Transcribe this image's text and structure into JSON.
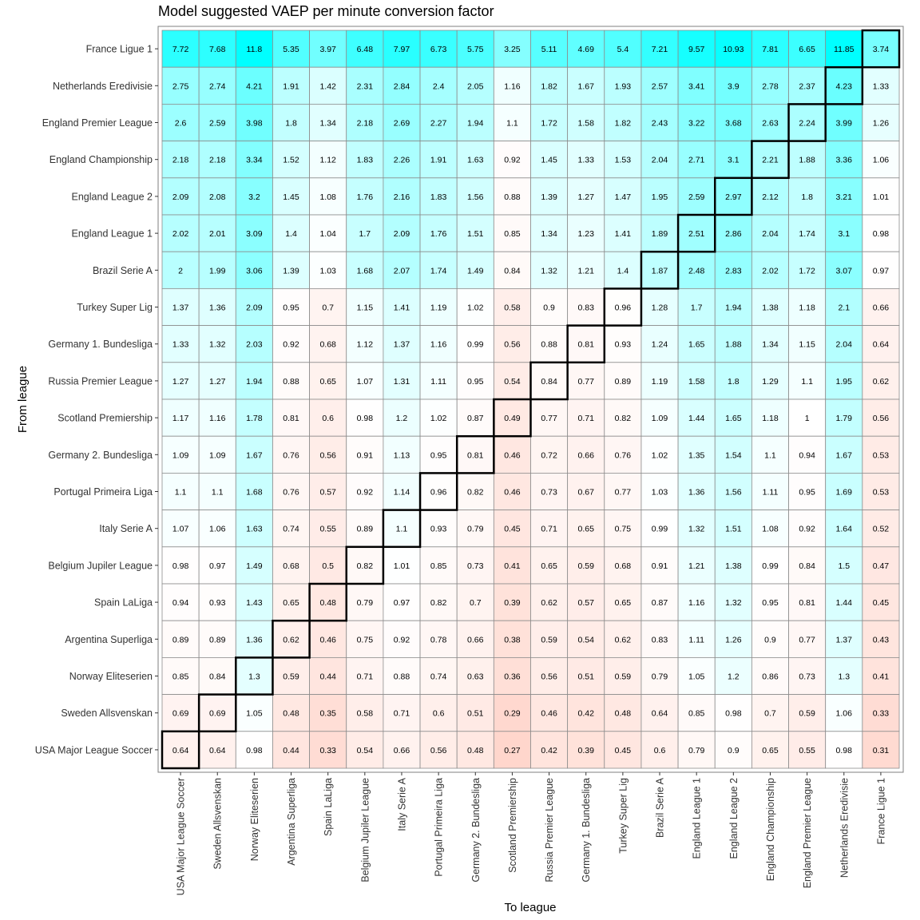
{
  "chart_data": {
    "type": "heatmap",
    "title": "Model suggested VAEP per minute conversion factor",
    "xlabel": "To league",
    "ylabel": "From league",
    "grid": true,
    "legend": "none",
    "colors": {
      "high": "#00ffff",
      "mid": "#ffffff",
      "low": "#ffd6cc",
      "midpoint": 1.0,
      "diagonal_outline": "#000000"
    },
    "x_categories": [
      "USA Major League Soccer",
      "Sweden Allsvenskan",
      "Norway Eliteserien",
      "Argentina Superliga",
      "Spain LaLiga",
      "Belgium Jupiler League",
      "Italy Serie A",
      "Portugal Primeira Liga",
      "Germany 2. Bundesliga",
      "Scotland Premiership",
      "Russia Premier League",
      "Germany 1. Bundesliga",
      "Turkey Super Lig",
      "Brazil Serie A",
      "England League 1",
      "England League 2",
      "England Championship",
      "England Premier League",
      "Netherlands Eredivisie",
      "France Ligue 1"
    ],
    "y_categories": [
      "France Ligue 1",
      "Netherlands Eredivisie",
      "England Premier League",
      "England Championship",
      "England League 2",
      "England League 1",
      "Brazil Serie A",
      "Turkey Super Lig",
      "Germany 1. Bundesliga",
      "Russia Premier League",
      "Scotland Premiership",
      "Germany 2. Bundesliga",
      "Portugal Primeira Liga",
      "Italy Serie A",
      "Belgium Jupiler League",
      "Spain LaLiga",
      "Argentina Superliga",
      "Norway Eliteserien",
      "Sweden Allsvenskan",
      "USA Major League Soccer"
    ],
    "values": [
      [
        7.72,
        7.68,
        11.8,
        5.35,
        3.97,
        6.48,
        7.97,
        6.73,
        5.75,
        3.25,
        5.11,
        4.69,
        5.4,
        7.21,
        9.57,
        10.93,
        7.81,
        6.65,
        11.85,
        3.74
      ],
      [
        2.75,
        2.74,
        4.21,
        1.91,
        1.42,
        2.31,
        2.84,
        2.4,
        2.05,
        1.16,
        1.82,
        1.67,
        1.93,
        2.57,
        3.41,
        3.9,
        2.78,
        2.37,
        4.23,
        1.33
      ],
      [
        2.6,
        2.59,
        3.98,
        1.8,
        1.34,
        2.18,
        2.69,
        2.27,
        1.94,
        1.1,
        1.72,
        1.58,
        1.82,
        2.43,
        3.22,
        3.68,
        2.63,
        2.24,
        3.99,
        1.26
      ],
      [
        2.18,
        2.18,
        3.34,
        1.52,
        1.12,
        1.83,
        2.26,
        1.91,
        1.63,
        0.92,
        1.45,
        1.33,
        1.53,
        2.04,
        2.71,
        3.1,
        2.21,
        1.88,
        3.36,
        1.06
      ],
      [
        2.09,
        2.08,
        3.2,
        1.45,
        1.08,
        1.76,
        2.16,
        1.83,
        1.56,
        0.88,
        1.39,
        1.27,
        1.47,
        1.95,
        2.59,
        2.97,
        2.12,
        1.8,
        3.21,
        1.01
      ],
      [
        2.02,
        2.01,
        3.09,
        1.4,
        1.04,
        1.7,
        2.09,
        1.76,
        1.51,
        0.85,
        1.34,
        1.23,
        1.41,
        1.89,
        2.51,
        2.86,
        2.04,
        1.74,
        3.1,
        0.98
      ],
      [
        2,
        1.99,
        3.06,
        1.39,
        1.03,
        1.68,
        2.07,
        1.74,
        1.49,
        0.84,
        1.32,
        1.21,
        1.4,
        1.87,
        2.48,
        2.83,
        2.02,
        1.72,
        3.07,
        0.97
      ],
      [
        1.37,
        1.36,
        2.09,
        0.95,
        0.7,
        1.15,
        1.41,
        1.19,
        1.02,
        0.58,
        0.9,
        0.83,
        0.96,
        1.28,
        1.7,
        1.94,
        1.38,
        1.18,
        2.1,
        0.66
      ],
      [
        1.33,
        1.32,
        2.03,
        0.92,
        0.68,
        1.12,
        1.37,
        1.16,
        0.99,
        0.56,
        0.88,
        0.81,
        0.93,
        1.24,
        1.65,
        1.88,
        1.34,
        1.15,
        2.04,
        0.64
      ],
      [
        1.27,
        1.27,
        1.94,
        0.88,
        0.65,
        1.07,
        1.31,
        1.11,
        0.95,
        0.54,
        0.84,
        0.77,
        0.89,
        1.19,
        1.58,
        1.8,
        1.29,
        1.1,
        1.95,
        0.62
      ],
      [
        1.17,
        1.16,
        1.78,
        0.81,
        0.6,
        0.98,
        1.2,
        1.02,
        0.87,
        0.49,
        0.77,
        0.71,
        0.82,
        1.09,
        1.44,
        1.65,
        1.18,
        1,
        1.79,
        0.56
      ],
      [
        1.09,
        1.09,
        1.67,
        0.76,
        0.56,
        0.91,
        1.13,
        0.95,
        0.81,
        0.46,
        0.72,
        0.66,
        0.76,
        1.02,
        1.35,
        1.54,
        1.1,
        0.94,
        1.67,
        0.53
      ],
      [
        1.1,
        1.1,
        1.68,
        0.76,
        0.57,
        0.92,
        1.14,
        0.96,
        0.82,
        0.46,
        0.73,
        0.67,
        0.77,
        1.03,
        1.36,
        1.56,
        1.11,
        0.95,
        1.69,
        0.53
      ],
      [
        1.07,
        1.06,
        1.63,
        0.74,
        0.55,
        0.89,
        1.1,
        0.93,
        0.79,
        0.45,
        0.71,
        0.65,
        0.75,
        0.99,
        1.32,
        1.51,
        1.08,
        0.92,
        1.64,
        0.52
      ],
      [
        0.98,
        0.97,
        1.49,
        0.68,
        0.5,
        0.82,
        1.01,
        0.85,
        0.73,
        0.41,
        0.65,
        0.59,
        0.68,
        0.91,
        1.21,
        1.38,
        0.99,
        0.84,
        1.5,
        0.47
      ],
      [
        0.94,
        0.93,
        1.43,
        0.65,
        0.48,
        0.79,
        0.97,
        0.82,
        0.7,
        0.39,
        0.62,
        0.57,
        0.65,
        0.87,
        1.16,
        1.32,
        0.95,
        0.81,
        1.44,
        0.45
      ],
      [
        0.89,
        0.89,
        1.36,
        0.62,
        0.46,
        0.75,
        0.92,
        0.78,
        0.66,
        0.38,
        0.59,
        0.54,
        0.62,
        0.83,
        1.11,
        1.26,
        0.9,
        0.77,
        1.37,
        0.43
      ],
      [
        0.85,
        0.84,
        1.3,
        0.59,
        0.44,
        0.71,
        0.88,
        0.74,
        0.63,
        0.36,
        0.56,
        0.51,
        0.59,
        0.79,
        1.05,
        1.2,
        0.86,
        0.73,
        1.3,
        0.41
      ],
      [
        0.69,
        0.69,
        1.05,
        0.48,
        0.35,
        0.58,
        0.71,
        0.6,
        0.51,
        0.29,
        0.46,
        0.42,
        0.48,
        0.64,
        0.85,
        0.98,
        0.7,
        0.59,
        1.06,
        0.33
      ],
      [
        0.64,
        0.64,
        0.98,
        0.44,
        0.33,
        0.54,
        0.66,
        0.56,
        0.48,
        0.27,
        0.42,
        0.39,
        0.45,
        0.6,
        0.79,
        0.9,
        0.65,
        0.55,
        0.98,
        0.31
      ]
    ]
  }
}
